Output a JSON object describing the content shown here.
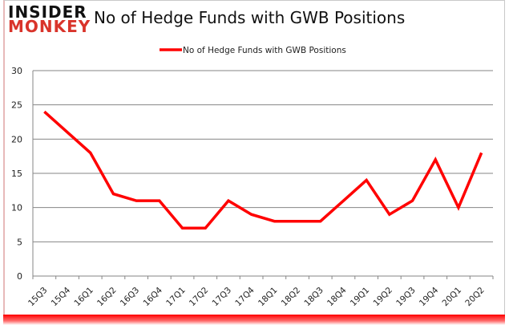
{
  "logo": {
    "line1": "INSIDER",
    "line2": "MONKEY"
  },
  "title": "No of Hedge Funds with GWB Positions",
  "chart_data": {
    "type": "line",
    "title": "No of Hedge Funds with GWB Positions",
    "xlabel": "",
    "ylabel": "",
    "ylim": [
      0,
      30
    ],
    "yticks": [
      0,
      5,
      10,
      15,
      20,
      25,
      30
    ],
    "grid": true,
    "legend_position": "top",
    "categories": [
      "15Q3",
      "15Q4",
      "16Q1",
      "16Q2",
      "16Q3",
      "16Q4",
      "17Q1",
      "17Q2",
      "17Q3",
      "17Q4",
      "18Q1",
      "18Q2",
      "18Q3",
      "18Q4",
      "19Q1",
      "19Q2",
      "19Q3",
      "19Q4",
      "20Q1",
      "20Q2"
    ],
    "series": [
      {
        "name": "No of Hedge Funds with GWB Positions",
        "color": "#ff0000",
        "values": [
          24,
          21,
          18,
          12,
          11,
          11,
          7,
          7,
          11,
          9,
          8,
          8,
          8,
          11,
          14,
          9,
          11,
          17,
          10,
          18
        ]
      }
    ]
  }
}
